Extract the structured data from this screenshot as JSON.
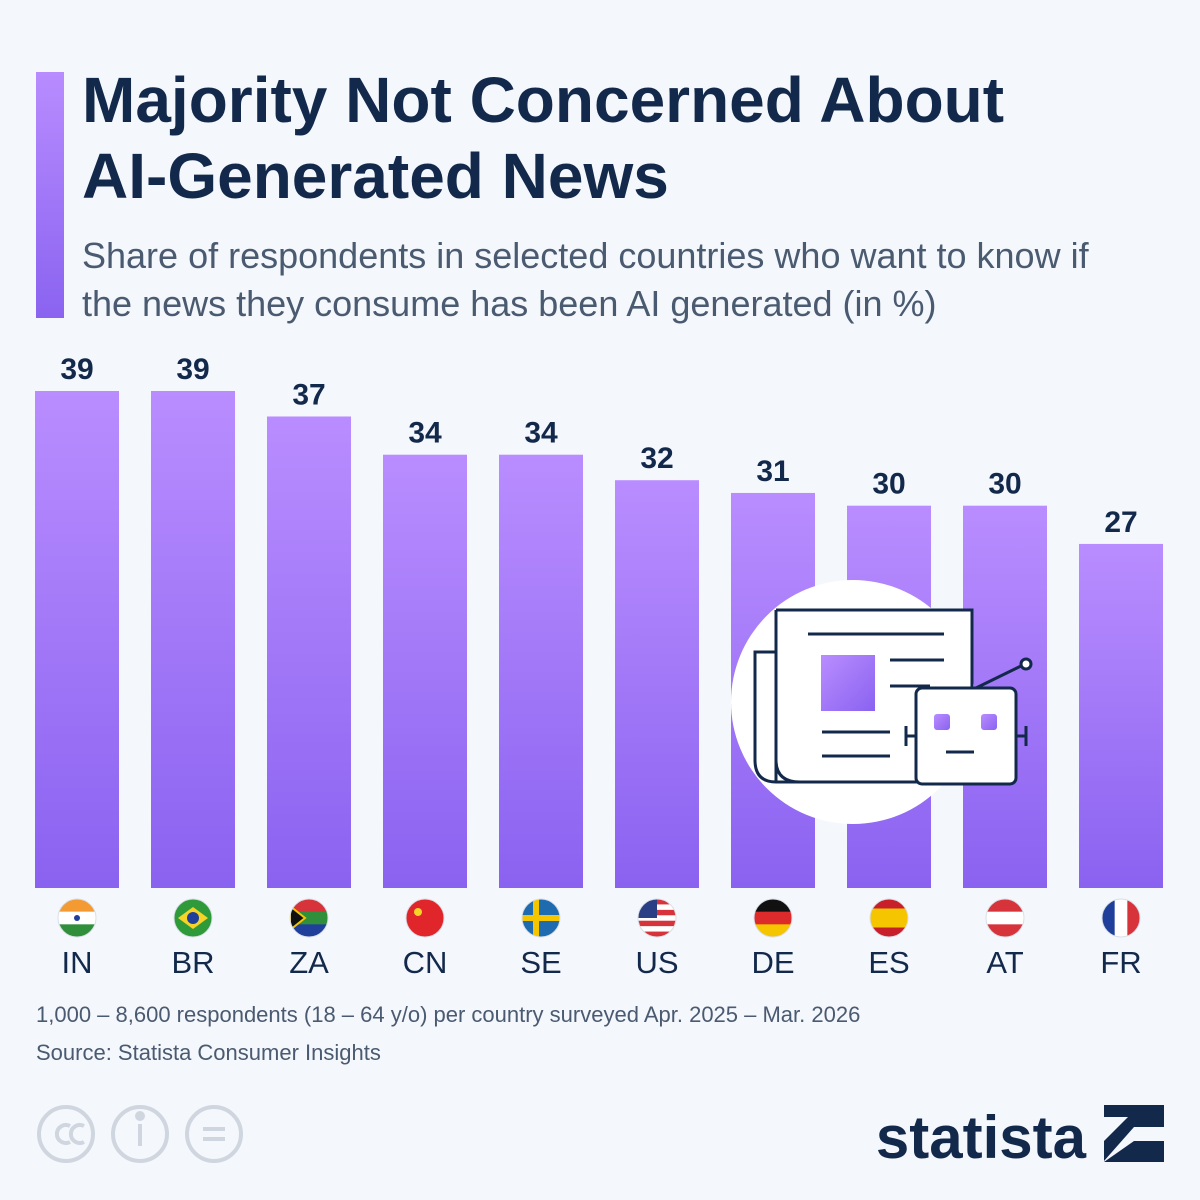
{
  "chart_data": {
    "type": "bar",
    "title": "Majority Not Concerned About AI-Generated News",
    "subtitle": "Share of respondents in selected countries who want to know if the news they consume has been AI generated (in %)",
    "categories": [
      "IN",
      "BR",
      "ZA",
      "CN",
      "SE",
      "US",
      "DE",
      "ES",
      "AT",
      "FR"
    ],
    "values": [
      39,
      39,
      37,
      34,
      34,
      32,
      31,
      30,
      30,
      27
    ],
    "color": "#a57af8",
    "note": "1,000 – 8,600 respondents (18 – 64 y/o) per country surveyed Apr. 2025 – Mar. 2026",
    "source": "Source: Statista Consumer Insights",
    "brand": "statista"
  }
}
